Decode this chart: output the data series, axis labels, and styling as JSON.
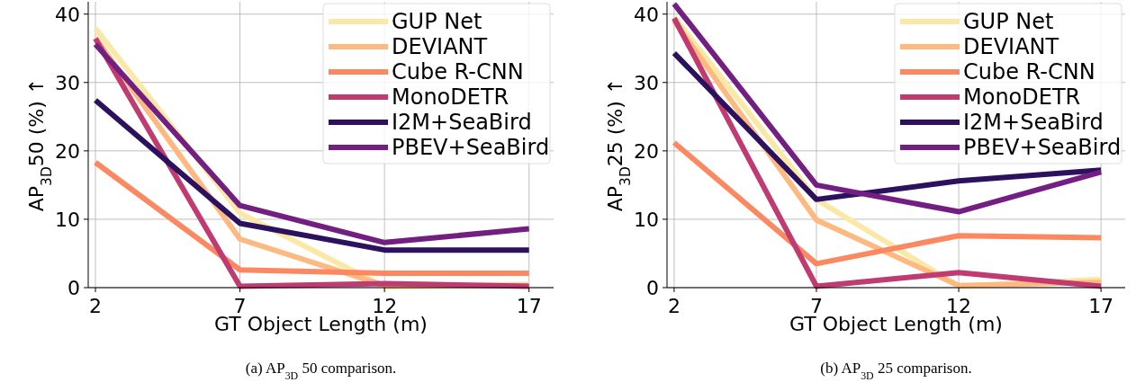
{
  "chart_data": [
    {
      "type": "line",
      "title": "(a) AP$_{3D}$ 50 comparison.",
      "xlabel": "GT Object Length (m)",
      "ylabel": "AP$_{3D}$50 (%) ↑",
      "x": [
        2,
        7,
        12,
        17
      ],
      "xlim": [
        1.75,
        17.85
      ],
      "ylim": [
        0,
        41.8
      ],
      "xticks": [
        2,
        7,
        12,
        17
      ],
      "yticks": [
        0,
        10,
        20,
        30,
        40
      ],
      "grid": true,
      "legend": "top right",
      "line_style": "solid",
      "marker": "none",
      "series": [
        {
          "name": "GUP Net",
          "color": "#fce8a6",
          "values": [
            37.9,
            10.9,
            0.1,
            0.5
          ]
        },
        {
          "name": "DEVIANT",
          "color": "#fdb97f",
          "values": [
            36.5,
            7.1,
            0.3,
            0.3
          ]
        },
        {
          "name": "Cube R-CNN",
          "color": "#fb8861",
          "values": [
            18.3,
            2.6,
            2.1,
            2.1
          ]
        },
        {
          "name": "MonoDETR",
          "color": "#c03b72",
          "values": [
            36.4,
            0.2,
            0.6,
            0.2
          ]
        },
        {
          "name": "I2M+SeaBird",
          "color": "#2c115f",
          "values": [
            27.4,
            9.4,
            5.5,
            5.5
          ]
        },
        {
          "name": "PBEV+SeaBird",
          "color": "#721f81",
          "values": [
            35.6,
            12.0,
            6.6,
            8.6
          ]
        }
      ]
    },
    {
      "type": "line",
      "title": "(b) AP$_{3D}$ 25 comparison.",
      "xlabel": "GT Object Length (m)",
      "ylabel": "AP$_{3D}$25 (%) ↑",
      "x": [
        2,
        7,
        12,
        17
      ],
      "xlim": [
        1.75,
        17.85
      ],
      "ylim": [
        0,
        41.8
      ],
      "xticks": [
        2,
        7,
        12,
        17
      ],
      "yticks": [
        0,
        10,
        20,
        30,
        40
      ],
      "grid": true,
      "legend": "top right",
      "line_style": "solid",
      "marker": "none",
      "series": [
        {
          "name": "GUP Net",
          "color": "#fce8a6",
          "values": [
            39.6,
            12.9,
            0.2,
            1.2
          ]
        },
        {
          "name": "DEVIANT",
          "color": "#fdb97f",
          "values": [
            39.0,
            9.9,
            0.3,
            0.8
          ]
        },
        {
          "name": "Cube R-CNN",
          "color": "#fb8861",
          "values": [
            21.2,
            3.5,
            7.6,
            7.3
          ]
        },
        {
          "name": "MonoDETR",
          "color": "#c03b72",
          "values": [
            39.4,
            0.2,
            2.2,
            0.2
          ]
        },
        {
          "name": "I2M+SeaBird",
          "color": "#2c115f",
          "values": [
            34.3,
            12.9,
            15.6,
            17.2
          ]
        },
        {
          "name": "PBEV+SeaBird",
          "color": "#721f81",
          "values": [
            41.5,
            15.0,
            11.1,
            16.9
          ]
        }
      ]
    }
  ]
}
